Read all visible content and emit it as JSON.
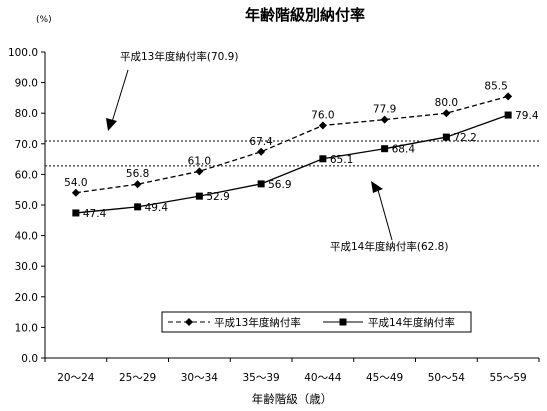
{
  "chart_data": {
    "type": "line",
    "title": "年齢階級別納付率",
    "unit_label": "(%)",
    "xlabel": "年齢階級（歳）",
    "categories": [
      "20～24",
      "25～29",
      "30～34",
      "35～39",
      "40～44",
      "45～49",
      "50～54",
      "55～59"
    ],
    "ylim": [
      0,
      100
    ],
    "yticks": [
      "0.0",
      "10.0",
      "20.0",
      "30.0",
      "40.0",
      "50.0",
      "60.0",
      "70.0",
      "80.0",
      "90.0",
      "100.0"
    ],
    "grid": false,
    "legend_position": "bottom-right",
    "series": [
      {
        "name": "平成13年度納付率",
        "values": [
          54.0,
          56.8,
          61.0,
          67.4,
          76.0,
          77.9,
          80.0,
          85.5
        ],
        "labels": [
          "54.0",
          "56.8",
          "61.0",
          "67.4",
          "76.0",
          "77.9",
          "80.0",
          "85.5"
        ],
        "style": "dashed",
        "marker": "diamond",
        "color": "#000000"
      },
      {
        "name": "平成14年度納付率",
        "values": [
          47.4,
          49.4,
          52.9,
          56.9,
          65.1,
          68.4,
          72.2,
          79.4
        ],
        "labels": [
          "47.4",
          "49.4",
          "52.9",
          "56.9",
          "65.1",
          "68.4",
          "72.2",
          "79.4"
        ],
        "style": "solid",
        "marker": "square",
        "color": "#000000"
      }
    ],
    "reference_lines": [
      {
        "label": "平成13年度納付率(70.9)",
        "value": 70.9
      },
      {
        "label": "平成14年度納付率(62.8)",
        "value": 62.8
      }
    ]
  }
}
